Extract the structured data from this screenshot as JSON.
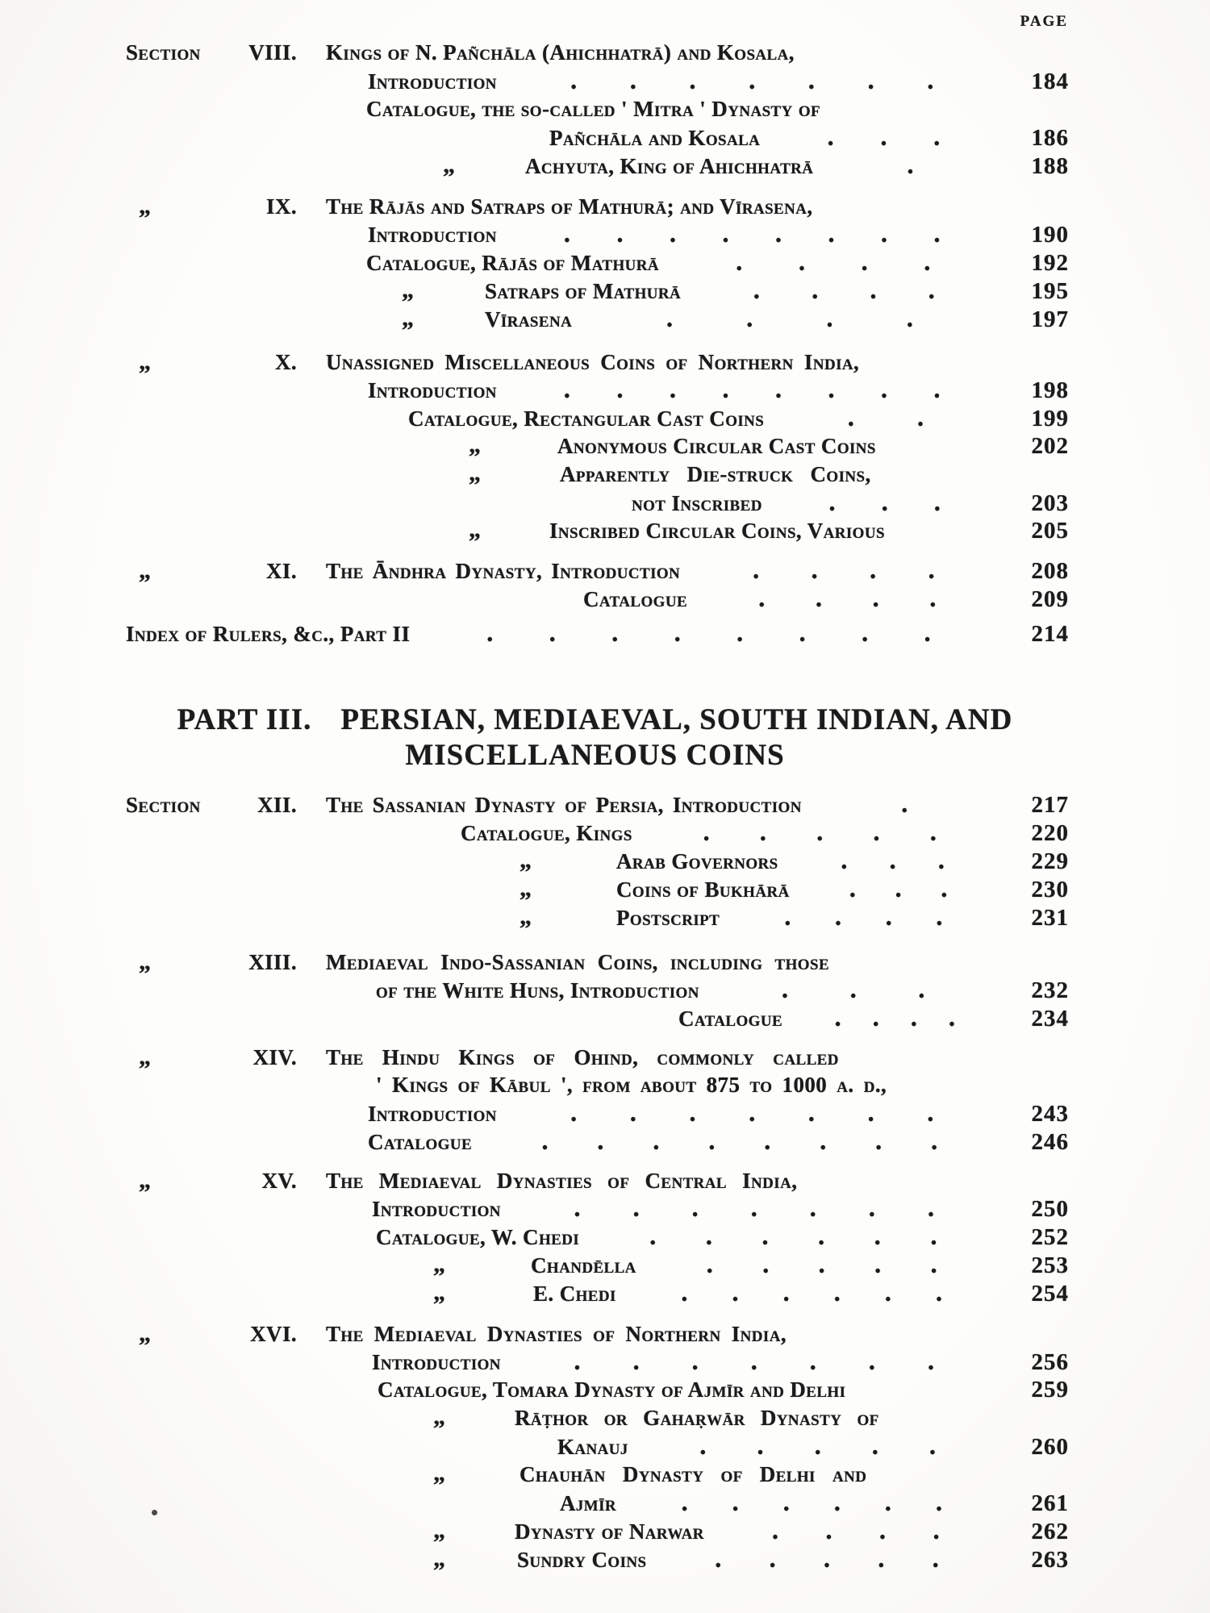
{
  "page_header": "Page",
  "part_heading": {
    "label": "PART III.",
    "line1": "PERSIAN, MEDIAEVAL, SOUTH INDIAN, AND",
    "line2": "MISCELLANEOUS COINS"
  },
  "sections": [
    {
      "type": "rows",
      "name": "section-viii",
      "rows": [
        {
          "m": "Section",
          "n": "VIII.",
          "t": "Kings of N. Pañchāla (Ahichhatrā) and Kosala,",
          "ind": 0,
          "dots": 0,
          "p": ""
        },
        {
          "t": "Introduction",
          "ind": 52,
          "dots": 7,
          "p": "184"
        },
        {
          "t": "Catalogue, the so-called ' Mitra ' Dynasty of",
          "ind": 50,
          "dots": 0,
          "p": ""
        },
        {
          "t": "Pañchāla and Kosala",
          "ind": 277,
          "dots": 3,
          "p": "186"
        },
        {
          "t": "Achyuta, King of Ahichhatrā",
          "ind": 247,
          "ditto": 145,
          "dots": 1,
          "p": "188"
        }
      ]
    },
    {
      "type": "rows",
      "name": "section-ix",
      "rows": [
        {
          "m": "„",
          "n": "IX.",
          "t": "The Rājās and Satraps of Mathurā; and Vīrasena,",
          "ind": 0,
          "dots": 0,
          "p": ""
        },
        {
          "t": "Introduction",
          "ind": 52,
          "dots": 8,
          "p": "190"
        },
        {
          "t": "Catalogue, Rājās of Mathurā",
          "ind": 50,
          "dots": 4,
          "p": "192"
        },
        {
          "t": "Satraps of Mathurā",
          "ind": 197,
          "ditto": 94,
          "dots": 4,
          "p": "195"
        },
        {
          "t": "Vīrasena",
          "ind": 197,
          "ditto": 94,
          "dots": 4,
          "p": "197"
        }
      ]
    },
    {
      "type": "rows",
      "name": "section-x",
      "rows": [
        {
          "m": "„",
          "n": "X.",
          "t": "Unassigned Miscellaneous Coins of Northern India,",
          "ind": 0,
          "sp": 6,
          "dots": 0,
          "p": ""
        },
        {
          "t": "Introduction",
          "ind": 52,
          "dots": 8,
          "p": "198"
        },
        {
          "t": "Catalogue, Rectangular Cast Coins",
          "ind": 102,
          "dots": 2,
          "p": "199"
        },
        {
          "t": "Anonymous Circular Cast Coins",
          "ind": 287,
          "ditto": 177,
          "dots": 0,
          "p": "202"
        },
        {
          "t": "Apparently Die-struck Coins,",
          "ind": 290,
          "ditto": 177,
          "sp": 14,
          "dots": 0,
          "p": ""
        },
        {
          "t": "not Inscribed",
          "ind": 379,
          "dots": 3,
          "p": "203"
        },
        {
          "t": "Inscribed Circular Coins, Various",
          "ind": 277,
          "ditto": 177,
          "dots": 0,
          "p": "205"
        }
      ]
    },
    {
      "type": "rows",
      "name": "section-xi",
      "rows": [
        {
          "m": "„",
          "n": "XI.",
          "t": "The Āndhra Dynasty, Introduction",
          "ind": 0,
          "sp": 4,
          "dots": 4,
          "p": "208"
        },
        {
          "t": "Catalogue",
          "ind": 319,
          "dots": 4,
          "p": "209"
        }
      ]
    },
    {
      "type": "rows",
      "name": "index-of-rulers",
      "rows": [
        {
          "wide": true,
          "t": "Index of Rulers, &c., Part II",
          "ind": 0,
          "dots": 8,
          "p": "214"
        }
      ]
    },
    {
      "type": "heading",
      "name": "part-iii-heading"
    },
    {
      "type": "rows",
      "name": "section-xii",
      "rows": [
        {
          "m": "Section",
          "n": "XII.",
          "t": "The Sassanian Dynasty of Persia, Introduction",
          "ind": 0,
          "sp": 4,
          "dots": 1,
          "p": "217"
        },
        {
          "t": "Catalogue, Kings",
          "ind": 167,
          "dots": 5,
          "p": "220"
        },
        {
          "t": "Arab Governors",
          "ind": 360,
          "ditto": 240,
          "dots": 3,
          "p": "229"
        },
        {
          "t": "Coins of Bukhārā",
          "ind": 360,
          "ditto": 240,
          "dots": 3,
          "p": "230"
        },
        {
          "t": "Postscript",
          "ind": 360,
          "ditto": 240,
          "dots": 4,
          "p": "231"
        }
      ]
    },
    {
      "type": "rows",
      "name": "section-xiii",
      "rows": [
        {
          "m": "„",
          "n": "XIII.",
          "t": "Mediaeval Indo-Sassanian Coins, including those",
          "ind": 0,
          "sp": 8,
          "dots": 0,
          "p": ""
        },
        {
          "t": "of the White Huns, Introduction",
          "ind": 62,
          "dots": 3,
          "p": "232"
        },
        {
          "t": "Catalogue",
          "ind": 437,
          "dots": 4,
          "p": "234"
        }
      ]
    },
    {
      "type": "rows",
      "name": "section-xiv",
      "rows": [
        {
          "m": "„",
          "n": "XIV.",
          "t": "The Hindu Kings of Ohind, commonly called",
          "ind": 0,
          "sp": 16,
          "dots": 0,
          "p": ""
        },
        {
          "t": "' Kings of Kābul ', from about 875 to 1000 a. d.,",
          "ind": 62,
          "sp": 5,
          "dots": 0,
          "p": ""
        },
        {
          "t": "Introduction",
          "ind": 52,
          "dots": 7,
          "p": "243"
        },
        {
          "t": "Catalogue",
          "ind": 52,
          "dots": 8,
          "p": "246"
        }
      ]
    },
    {
      "type": "rows",
      "name": "section-xv",
      "rows": [
        {
          "m": "„",
          "n": "XV.",
          "t": "The Mediaeval Dynasties of Central India,",
          "ind": 0,
          "sp": 12,
          "dots": 0,
          "p": ""
        },
        {
          "t": "Introduction",
          "ind": 57,
          "dots": 7,
          "p": "250"
        },
        {
          "t": "Catalogue, W. Chedi",
          "ind": 62,
          "dots": 6,
          "p": "252"
        },
        {
          "t": "Chandēlla",
          "ind": 254,
          "ditto": 133,
          "dots": 5,
          "p": "253"
        },
        {
          "t": "E. Chedi",
          "ind": 257,
          "ditto": 133,
          "dots": 6,
          "p": "254"
        }
      ]
    },
    {
      "type": "rows",
      "name": "section-xvi",
      "rows": [
        {
          "m": "„",
          "n": "XVI.",
          "t": "The Mediaeval Dynasties of Northern India,",
          "ind": 0,
          "sp": 6,
          "dots": 0,
          "p": ""
        },
        {
          "t": "Introduction",
          "ind": 57,
          "dots": 7,
          "p": "256"
        },
        {
          "t": "Catalogue, Tomara Dynasty of Ajmīr and Delhi",
          "ind": 64,
          "dots": 0,
          "p": "259"
        },
        {
          "t": "Rāṭhor or Gahaṛwār Dynasty of",
          "ind": 234,
          "ditto": 133,
          "sp": 12,
          "dots": 0,
          "p": ""
        },
        {
          "t": "Kanauj",
          "ind": 287,
          "dots": 5,
          "p": "260"
        },
        {
          "t": "Chauhān Dynasty of Delhi and",
          "ind": 240,
          "ditto": 133,
          "sp": 14,
          "dots": 0,
          "p": ""
        },
        {
          "t": "Ajmīr",
          "ind": 290,
          "dots": 6,
          "p": "261"
        },
        {
          "t": "Dynasty of Narwar",
          "ind": 234,
          "ditto": 133,
          "dots": 4,
          "p": "262"
        },
        {
          "t": "Sundry Coins",
          "ind": 237,
          "ditto": 133,
          "dots": 5,
          "p": "263"
        }
      ]
    }
  ],
  "stray_mark": "."
}
